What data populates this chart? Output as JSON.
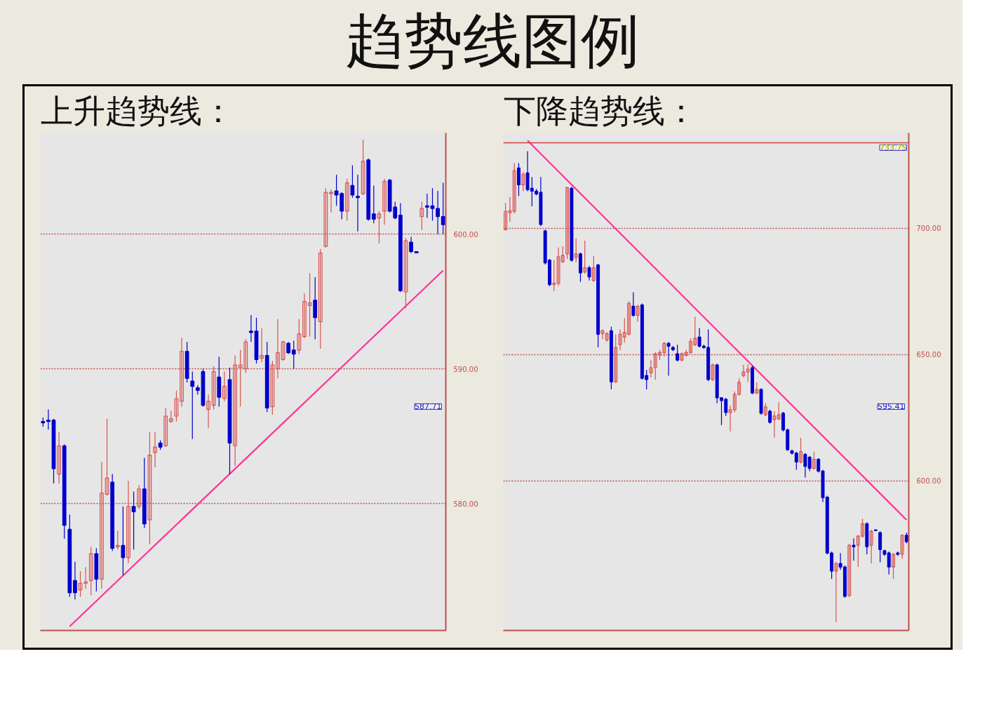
{
  "chart_data": [
    {
      "type": "candlestick",
      "title": "趋势线图例",
      "subtitle": "上升趋势线：",
      "categories": [
        null,
        null,
        null,
        null,
        null,
        null,
        null,
        null,
        null,
        null,
        null,
        null,
        null,
        null,
        null,
        null,
        null,
        null,
        null,
        null,
        null,
        null,
        null,
        null,
        null,
        null,
        null,
        null,
        null,
        null,
        null,
        null,
        null,
        null,
        null,
        null,
        null,
        null,
        null,
        null,
        null,
        null,
        null,
        null,
        null,
        null,
        null,
        null,
        null,
        null,
        null,
        null,
        null,
        null,
        null,
        null,
        null,
        null,
        null,
        null,
        null,
        null,
        null,
        null,
        null,
        null,
        null,
        null,
        null,
        null,
        null,
        null,
        null,
        null,
        null,
        null
      ],
      "ohlc": [
        [
          586.1,
          586.4,
          585.7,
          586.0
        ],
        [
          586.2,
          587.0,
          585.5,
          586.1
        ],
        [
          586.2,
          586.3,
          581.5,
          582.6
        ],
        [
          582.2,
          585.3,
          581.5,
          584.3
        ],
        [
          584.3,
          584.4,
          577.4,
          578.4
        ],
        [
          578.1,
          579.2,
          573.1,
          573.4
        ],
        [
          574.3,
          575.7,
          572.9,
          573.4
        ],
        [
          573.6,
          575.0,
          573.1,
          574.1
        ],
        [
          574.1,
          575.3,
          573.7,
          574.2
        ],
        [
          574.3,
          576.8,
          573.2,
          576.3
        ],
        [
          576.3,
          576.7,
          573.5,
          574.4
        ],
        [
          574.4,
          583.1,
          573.7,
          580.8
        ],
        [
          580.7,
          586.3,
          580.6,
          581.9
        ],
        [
          581.6,
          582.2,
          576.5,
          576.7
        ],
        [
          576.8,
          578.0,
          576.6,
          576.9
        ],
        [
          576.9,
          579.8,
          574.7,
          576.0
        ],
        [
          576.0,
          581.7,
          575.6,
          579.8
        ],
        [
          579.8,
          580.9,
          576.6,
          579.4
        ],
        [
          579.8,
          581.4,
          579.6,
          581.1
        ],
        [
          581.1,
          583.4,
          578.2,
          578.5
        ],
        [
          578.8,
          585.3,
          577.0,
          583.6
        ],
        [
          583.8,
          585.3,
          582.7,
          584.2
        ],
        [
          584.5,
          584.7,
          584.0,
          584.2
        ],
        [
          584.3,
          587.1,
          584.2,
          586.5
        ],
        [
          586.1,
          586.9,
          586.0,
          586.3
        ],
        [
          586.5,
          588.4,
          586.1,
          587.8
        ],
        [
          587.6,
          592.3,
          587.2,
          591.3
        ],
        [
          591.3,
          592.0,
          589.0,
          589.3
        ],
        [
          589.1,
          589.8,
          584.8,
          588.7
        ],
        [
          588.6,
          588.8,
          588.1,
          588.4
        ],
        [
          589.8,
          590.0,
          587.2,
          587.3
        ],
        [
          587.0,
          588.1,
          585.6,
          587.6
        ],
        [
          587.3,
          590.2,
          587.0,
          589.8
        ],
        [
          589.4,
          590.9,
          587.2,
          587.9
        ],
        [
          587.8,
          589.8,
          587.6,
          588.7
        ],
        [
          589.2,
          590.1,
          582.2,
          584.5
        ],
        [
          584.3,
          591.0,
          582.8,
          590.3
        ],
        [
          590.1,
          591.4,
          587.2,
          590.3
        ],
        [
          590.0,
          592.2,
          589.7,
          592.0
        ],
        [
          592.8,
          594.0,
          592.0,
          592.7
        ],
        [
          592.8,
          593.8,
          590.4,
          590.7
        ],
        [
          590.8,
          593.0,
          590.5,
          591.0
        ],
        [
          591.0,
          592.0,
          586.8,
          587.1
        ],
        [
          587.2,
          590.6,
          586.6,
          590.3
        ],
        [
          590.0,
          593.7,
          589.3,
          591.2
        ],
        [
          590.7,
          592.1,
          590.6,
          592.0
        ],
        [
          591.9,
          592.0,
          591.1,
          591.2
        ],
        [
          591.4,
          592.1,
          590.0,
          591.1
        ],
        [
          591.4,
          593.7,
          591.1,
          592.6
        ],
        [
          592.4,
          595.6,
          592.3,
          595.0
        ],
        [
          594.7,
          597.1,
          592.4,
          594.9
        ],
        [
          595.1,
          596.8,
          592.2,
          593.8
        ],
        [
          593.5,
          598.9,
          591.5,
          598.6
        ],
        [
          599.1,
          603.4,
          599.0,
          603.1
        ],
        [
          603.0,
          603.3,
          601.6,
          603.1
        ],
        [
          603.2,
          604.4,
          602.1,
          602.9
        ],
        [
          603.0,
          603.1,
          601.1,
          601.7
        ],
        [
          601.7,
          604.1,
          601.0,
          603.8
        ],
        [
          603.6,
          605.1,
          602.7,
          602.9
        ],
        [
          602.8,
          604.4,
          600.2,
          602.7
        ],
        [
          603.0,
          607.0,
          602.9,
          605.4
        ],
        [
          605.5,
          605.6,
          601.0,
          601.1
        ],
        [
          601.5,
          603.6,
          600.8,
          601.1
        ],
        [
          601.2,
          601.7,
          599.3,
          601.5
        ],
        [
          601.7,
          604.1,
          600.7,
          603.9
        ],
        [
          604.0,
          604.1,
          601.6,
          601.7
        ],
        [
          602.0,
          602.4,
          601.1,
          601.2
        ],
        [
          601.4,
          602.3,
          595.7,
          595.8
        ],
        [
          595.7,
          599.7,
          594.5,
          599.5
        ],
        [
          599.4,
          599.8,
          598.6,
          598.7
        ],
        [
          598.7,
          598.7,
          598.6,
          598.6
        ],
        [
          601.3,
          602.4,
          600.3,
          601.9
        ],
        [
          602.1,
          603.0,
          601.2,
          602.0
        ],
        [
          602.1,
          603.4,
          601.0,
          601.9
        ],
        [
          601.9,
          603.2,
          600.0,
          601.3
        ],
        [
          601.3,
          603.8,
          600.0,
          600.7
        ]
      ],
      "series": [
        {
          "type": "line",
          "color": "#ff3399",
          "values": [
            null,
            null,
            null,
            null,
            null,
            570.9,
            null,
            null,
            null,
            null,
            null,
            null,
            null,
            null,
            null,
            null,
            null,
            null,
            null,
            null,
            null,
            null,
            null,
            null,
            null,
            null,
            null,
            null,
            null,
            null,
            null,
            null,
            null,
            null,
            null,
            null,
            null,
            null,
            null,
            null,
            null,
            null,
            null,
            null,
            null,
            null,
            null,
            null,
            null,
            null,
            null,
            null,
            null,
            null,
            null,
            null,
            null,
            null,
            null,
            null,
            null,
            null,
            null,
            null,
            null,
            null,
            null,
            null,
            null,
            null,
            null,
            null,
            null,
            null,
            null,
            597.3
          ]
        }
      ],
      "ylim": [
        570.6,
        607.5
      ],
      "yticks": [
        {
          "value": 580,
          "label": "580.00"
        },
        {
          "value": 590,
          "label": "590.00"
        },
        {
          "value": 600,
          "label": "600.00"
        }
      ],
      "grid": "y",
      "tick_labels": "y",
      "annotations": [
        "587.71"
      ]
    },
    {
      "type": "candlestick",
      "subtitle": "下降趋势线：",
      "categories": [
        null,
        null,
        null,
        null,
        null,
        null,
        null,
        null,
        null,
        null,
        null,
        null,
        null,
        null,
        null,
        null,
        null,
        null,
        null,
        null,
        null,
        null,
        null,
        null,
        null,
        null,
        null,
        null,
        null,
        null,
        null,
        null,
        null,
        null,
        null,
        null,
        null,
        null,
        null,
        null,
        null,
        null,
        null,
        null,
        null,
        null,
        null,
        null,
        null,
        null,
        null,
        null,
        null,
        null,
        null,
        null,
        null,
        null,
        null,
        null,
        null,
        null,
        null,
        null,
        null,
        null,
        null,
        null,
        null,
        null,
        null,
        null,
        null,
        null,
        null,
        null,
        null,
        null,
        null,
        null,
        null,
        null,
        null,
        null,
        null,
        null,
        null,
        null,
        null,
        null,
        null,
        null
      ],
      "ohlc": [
        [
          699.4,
          709.9,
          698.9,
          706.6
        ],
        [
          706.1,
          712.2,
          702.5,
          706.9
        ],
        [
          706.6,
          725.7,
          705.8,
          722.7
        ],
        [
          723.8,
          725.7,
          712.7,
          717.1
        ],
        [
          717.1,
          722.1,
          714.6,
          721.3
        ],
        [
          721.8,
          730.4,
          714.6,
          715.2
        ],
        [
          715.7,
          720.2,
          708.6,
          714.6
        ],
        [
          714.6,
          715.5,
          713.0,
          713.5
        ],
        [
          714.1,
          720.2,
          700.8,
          701.4
        ],
        [
          698.9,
          699.4,
          685.6,
          686.2
        ],
        [
          687.3,
          687.8,
          677.1,
          677.6
        ],
        [
          677.6,
          687.3,
          675.1,
          678.2
        ],
        [
          678.2,
          692.3,
          677.1,
          688.7
        ],
        [
          686.7,
          692.8,
          686.2,
          689.2
        ],
        [
          689.8,
          716.3,
          687.8,
          716.0
        ],
        [
          715.7,
          716.3,
          686.7,
          687.3
        ],
        [
          688.4,
          695.9,
          686.5,
          689.8
        ],
        [
          689.8,
          690.3,
          678.7,
          682.3
        ],
        [
          682.6,
          695.0,
          682.0,
          684.3
        ],
        [
          684.3,
          685.1,
          679.3,
          680.7
        ],
        [
          679.3,
          689.0,
          678.7,
          684.3
        ],
        [
          685.4,
          685.9,
          652.8,
          658.0
        ],
        [
          658.3,
          659.9,
          656.1,
          659.4
        ],
        [
          655.8,
          658.8,
          655.0,
          658.3
        ],
        [
          659.4,
          661.0,
          636.2,
          639.2
        ],
        [
          639.2,
          658.0,
          638.7,
          652.8
        ],
        [
          653.9,
          659.9,
          651.7,
          658.0
        ],
        [
          656.9,
          664.4,
          654.7,
          658.8
        ],
        [
          658.0,
          671.0,
          657.5,
          670.2
        ],
        [
          669.1,
          674.6,
          664.9,
          665.5
        ],
        [
          665.5,
          669.6,
          663.0,
          669.1
        ],
        [
          669.6,
          670.2,
          640.1,
          640.6
        ],
        [
          641.7,
          643.9,
          636.2,
          640.1
        ],
        [
          642.8,
          647.8,
          640.9,
          644.8
        ],
        [
          644.8,
          650.8,
          640.1,
          650.3
        ],
        [
          649.7,
          651.9,
          647.8,
          650.8
        ],
        [
          650.8,
          655.0,
          649.2,
          654.4
        ],
        [
          654.4,
          655.0,
          641.7,
          653.3
        ],
        [
          652.8,
          653.3,
          651.4,
          651.9
        ],
        [
          650.3,
          653.9,
          647.2,
          647.8
        ],
        [
          647.8,
          650.8,
          647.2,
          650.3
        ],
        [
          649.7,
          651.9,
          649.2,
          650.8
        ],
        [
          650.8,
          656.4,
          650.3,
          655.2
        ],
        [
          653.9,
          664.9,
          653.3,
          656.4
        ],
        [
          656.9,
          660.5,
          652.8,
          653.3
        ],
        [
          653.3,
          653.9,
          652.2,
          652.8
        ],
        [
          652.8,
          659.9,
          639.5,
          640.1
        ],
        [
          640.1,
          646.4,
          639.5,
          645.9
        ],
        [
          645.9,
          646.4,
          630.7,
          632.9
        ],
        [
          632.9,
          633.1,
          622.1,
          631.8
        ],
        [
          632.3,
          632.9,
          625.7,
          627.1
        ],
        [
          627.1,
          629.8,
          619.6,
          628.2
        ],
        [
          628.2,
          635.4,
          627.1,
          634.3
        ],
        [
          634.3,
          640.6,
          633.7,
          639.0
        ],
        [
          641.7,
          645.9,
          640.9,
          643.1
        ],
        [
          643.1,
          646.1,
          639.2,
          644.2
        ],
        [
          644.8,
          645.6,
          634.3,
          634.8
        ],
        [
          634.8,
          639.0,
          634.3,
          636.2
        ],
        [
          636.2,
          636.7,
          626.2,
          626.8
        ],
        [
          626.2,
          630.7,
          625.7,
          629.3
        ],
        [
          627.6,
          628.2,
          622.7,
          623.2
        ],
        [
          624.3,
          627.6,
          617.1,
          625.7
        ],
        [
          624.6,
          631.2,
          624.0,
          626.2
        ],
        [
          626.8,
          627.3,
          619.6,
          620.2
        ],
        [
          620.2,
          620.7,
          611.9,
          612.4
        ],
        [
          611.9,
          612.4,
          610.5,
          611.0
        ],
        [
          611.0,
          611.6,
          604.4,
          607.5
        ],
        [
          607.5,
          617.1,
          606.9,
          611.6
        ],
        [
          610.5,
          611.0,
          601.4,
          605.8
        ],
        [
          609.4,
          609.9,
          603.9,
          605.0
        ],
        [
          605.0,
          611.6,
          604.4,
          608.6
        ],
        [
          608.6,
          609.1,
          603.3,
          603.9
        ],
        [
          603.9,
          604.4,
          591.7,
          593.4
        ],
        [
          593.6,
          594.2,
          571.0,
          571.5
        ],
        [
          571.5,
          572.1,
          561.3,
          564.4
        ],
        [
          564.4,
          568.0,
          544.2,
          567.4
        ],
        [
          567.4,
          571.5,
          564.9,
          566.0
        ],
        [
          566.0,
          566.6,
          553.9,
          554.4
        ],
        [
          554.7,
          575.1,
          554.1,
          574.6
        ],
        [
          574.6,
          577.3,
          568.5,
          574.0
        ],
        [
          574.6,
          578.7,
          566.0,
          578.2
        ],
        [
          578.2,
          585.1,
          577.6,
          583.1
        ],
        [
          583.1,
          583.7,
          571.0,
          574.0
        ],
        [
          574.6,
          580.7,
          567.4,
          580.1
        ],
        [
          580.7,
          580.8,
          580.3,
          580.4
        ],
        [
          579.6,
          580.1,
          567.9,
          572.9
        ],
        [
          572.4,
          572.9,
          570.4,
          571.0
        ],
        [
          571.5,
          572.1,
          563.0,
          566.0
        ],
        [
          566.0,
          571.5,
          561.3,
          571.0
        ],
        [
          571.5,
          572.1,
          570.4,
          571.0
        ],
        [
          571.0,
          579.0,
          569.3,
          578.5
        ],
        [
          578.5,
          579.6,
          575.4,
          576.0
        ]
      ],
      "series": [
        {
          "type": "line",
          "color": "#ff3399",
          "values": [
            null,
            null,
            null,
            null,
            null,
            734.6,
            null,
            null,
            null,
            null,
            null,
            null,
            null,
            null,
            null,
            null,
            null,
            null,
            null,
            null,
            null,
            null,
            null,
            null,
            null,
            null,
            null,
            null,
            null,
            null,
            null,
            null,
            null,
            null,
            null,
            null,
            null,
            null,
            null,
            null,
            null,
            null,
            null,
            null,
            null,
            null,
            null,
            null,
            null,
            null,
            null,
            null,
            null,
            null,
            null,
            null,
            null,
            null,
            null,
            null,
            null,
            null,
            null,
            null,
            null,
            null,
            null,
            null,
            null,
            null,
            null,
            null,
            null,
            null,
            null,
            null,
            null,
            null,
            null,
            null,
            null,
            null,
            null,
            null,
            null,
            null,
            null,
            null,
            null,
            null,
            null,
            584.6
          ]
        }
      ],
      "ylim": [
        540.9,
        737.6
      ],
      "yticks": [
        {
          "value": 600,
          "label": "600.00"
        },
        {
          "value": 650,
          "label": "650.00"
        },
        {
          "value": 700,
          "label": "700.00"
        }
      ],
      "grid": "y",
      "tick_labels": "y",
      "ref_lines": [
        {
          "axis": "y",
          "value": 733.75,
          "label": "733.75",
          "color": "#d04040"
        }
      ],
      "annotations": [
        "595.41"
      ]
    }
  ]
}
